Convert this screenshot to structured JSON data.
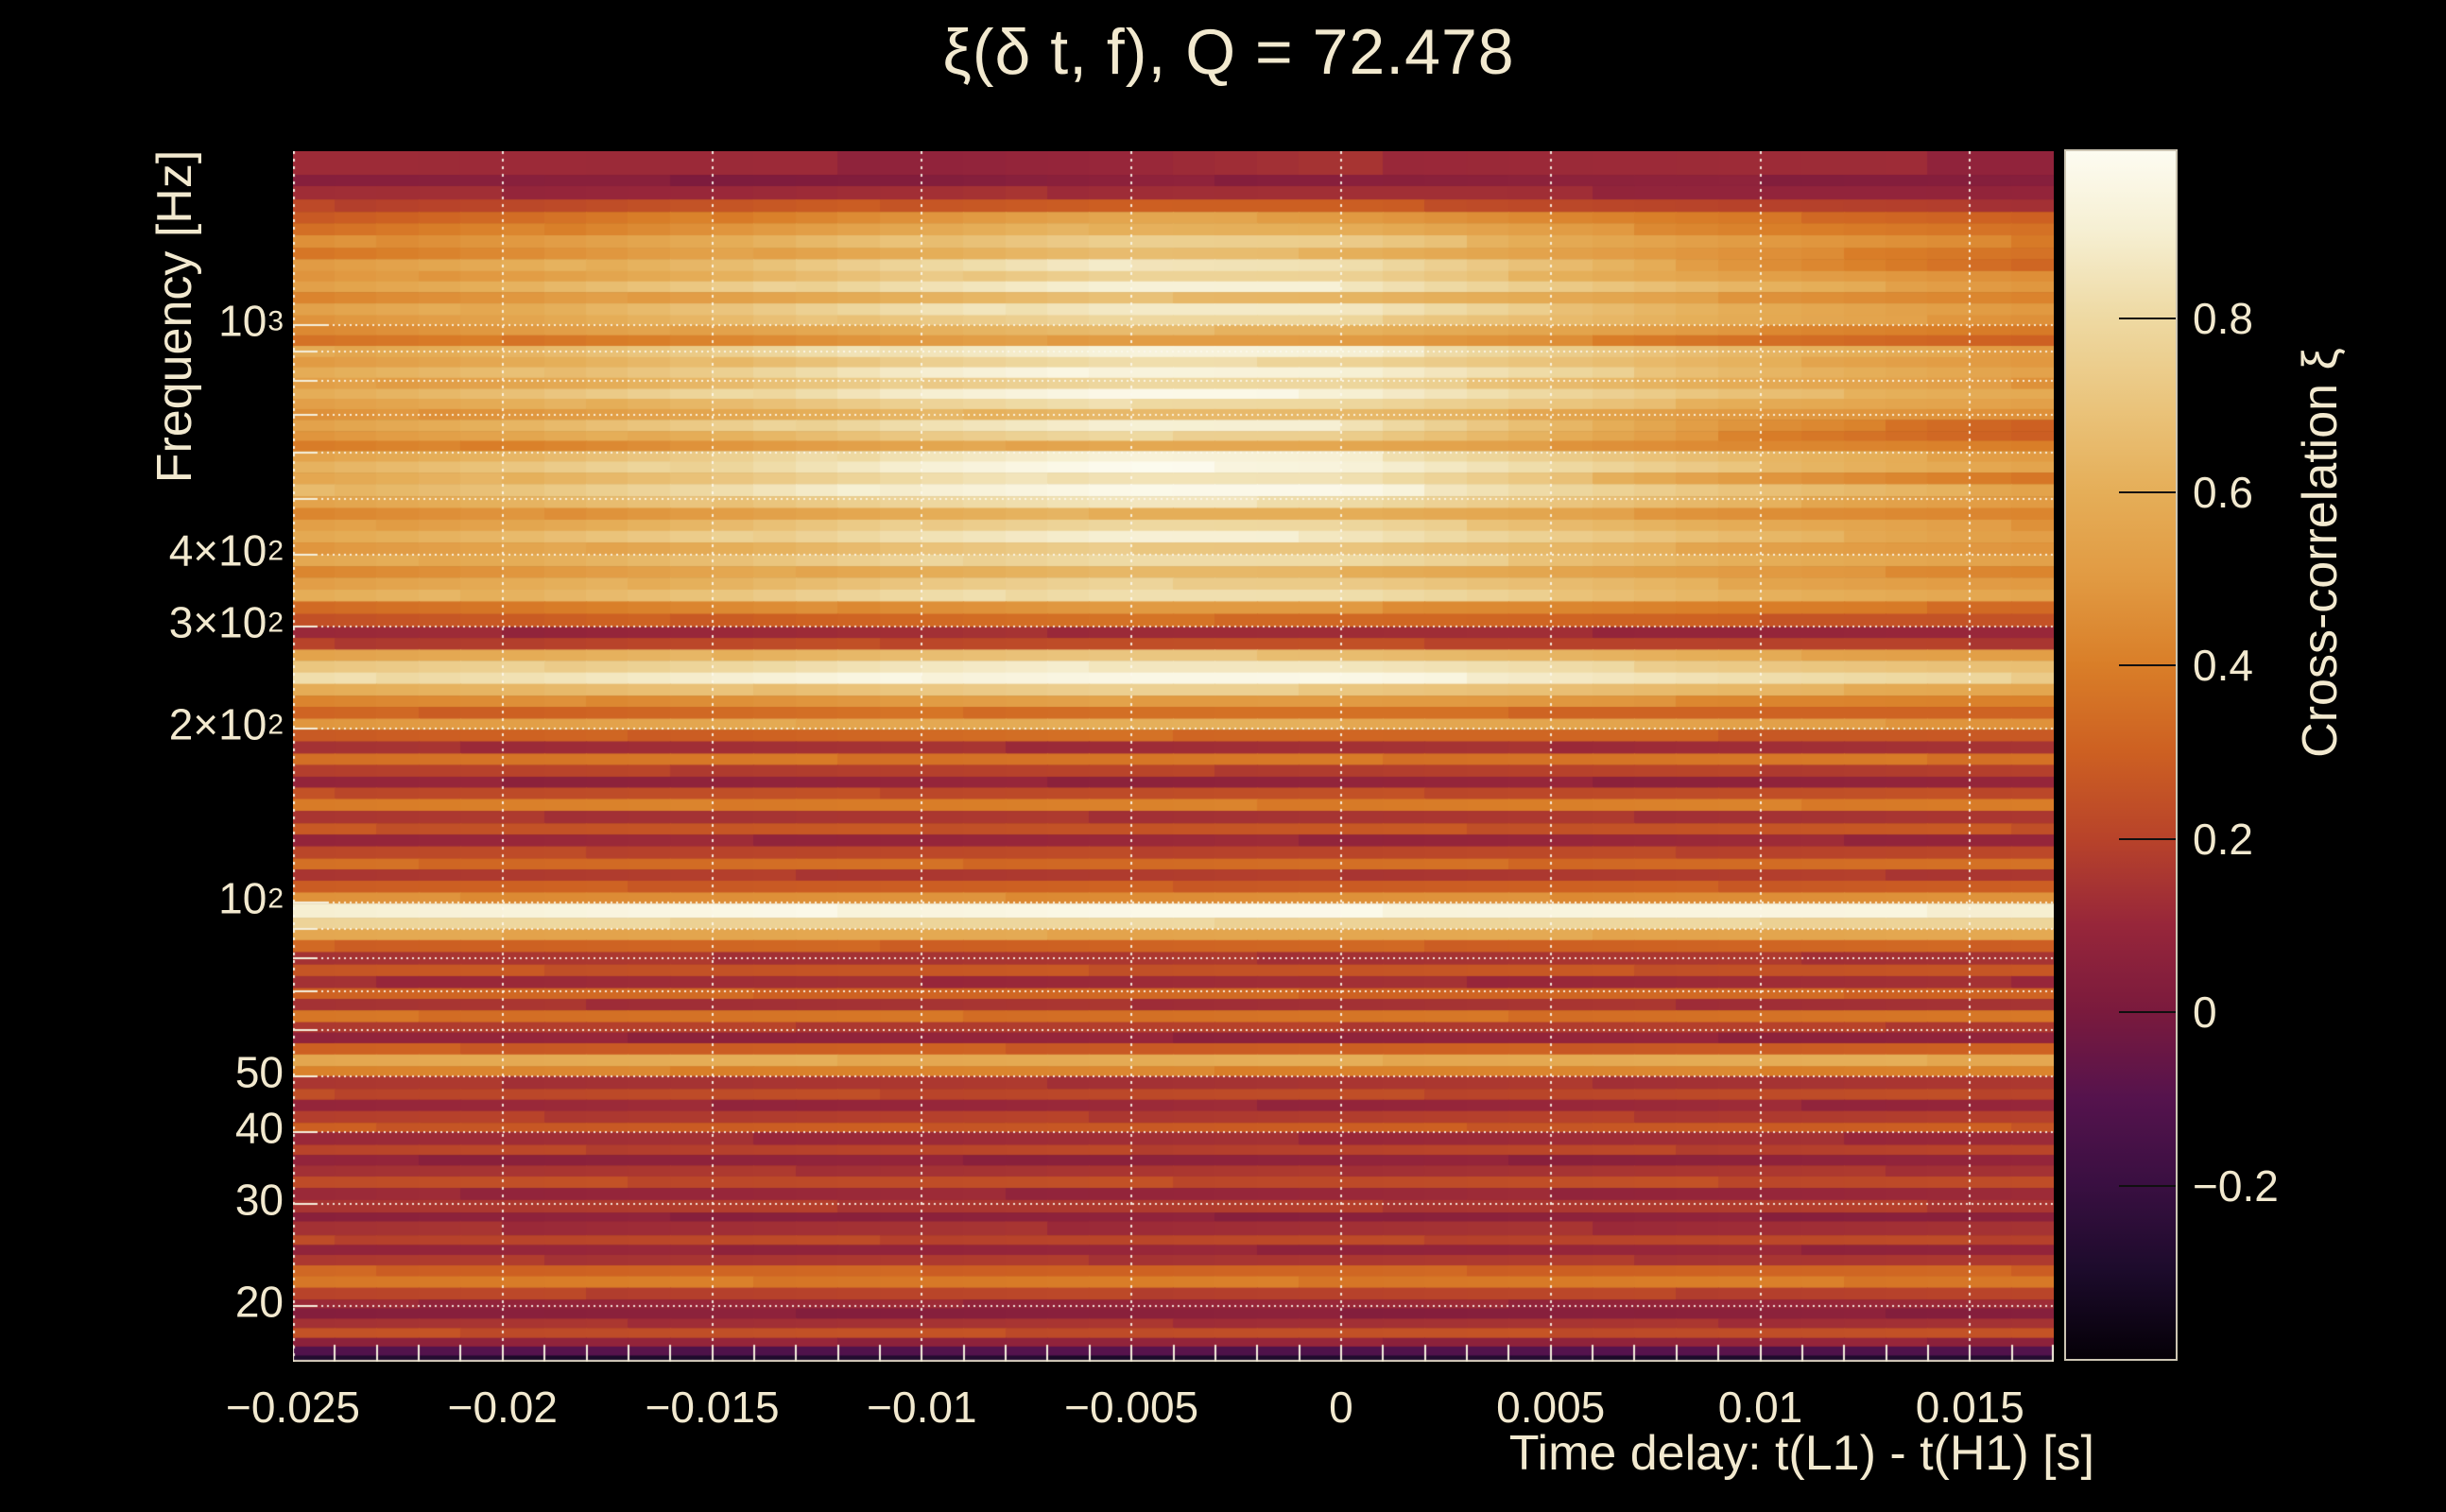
{
  "page": {
    "background": "#000000",
    "text_color": "#f2e9cf"
  },
  "chart_data": {
    "type": "heatmap",
    "title": "ξ(δ t, f), Q = 72.478",
    "xlabel": "Time delay: t(L1) - t(H1) [s]",
    "ylabel": "Frequency [Hz]",
    "colorbar_label": "Cross-correlation ξ",
    "xlim": [
      -0.025,
      0.017
    ],
    "ylim": [
      16,
      2000
    ],
    "yscale": "log",
    "zlim": [
      -0.4,
      0.993
    ],
    "grid": true,
    "xticks": [
      {
        "v": -0.025,
        "label": "−0.025"
      },
      {
        "v": -0.02,
        "label": "−0.02"
      },
      {
        "v": -0.015,
        "label": "−0.015"
      },
      {
        "v": -0.01,
        "label": "−0.01"
      },
      {
        "v": -0.005,
        "label": "−0.005"
      },
      {
        "v": 0,
        "label": "0"
      },
      {
        "v": 0.005,
        "label": "0.005"
      },
      {
        "v": 0.01,
        "label": "0.01"
      },
      {
        "v": 0.015,
        "label": "0.015"
      }
    ],
    "yticks": [
      {
        "f": 1000,
        "base": "10",
        "exp": "3"
      },
      {
        "f": 400,
        "base": "4×10",
        "exp": "2"
      },
      {
        "f": 300,
        "base": "3×10",
        "exp": "2"
      },
      {
        "f": 200,
        "base": "2×10",
        "exp": "2"
      },
      {
        "f": 100,
        "base": "10",
        "exp": "2"
      },
      {
        "f": 50,
        "base": "50",
        "exp": ""
      },
      {
        "f": 40,
        "base": "40",
        "exp": ""
      },
      {
        "f": 30,
        "base": "30",
        "exp": ""
      },
      {
        "f": 20,
        "base": "20",
        "exp": ""
      }
    ],
    "colorbar_ticks": [
      {
        "v": 0.8,
        "label": "0.8"
      },
      {
        "v": 0.6,
        "label": "0.6"
      },
      {
        "v": 0.4,
        "label": "0.4"
      },
      {
        "v": 0.2,
        "label": "0.2"
      },
      {
        "v": 0,
        "label": "0"
      },
      {
        "v": -0.2,
        "label": "−0.2"
      }
    ],
    "grid_x": [
      -0.02,
      -0.015,
      -0.01,
      -0.005,
      0,
      0.005,
      0.01,
      0.015
    ],
    "grid_f": [
      20,
      30,
      40,
      50,
      60,
      70,
      80,
      90,
      100,
      200,
      300,
      400,
      500,
      600,
      700,
      800,
      900,
      1000
    ],
    "x_anchors": [
      -0.025,
      -0.02,
      -0.015,
      -0.01,
      -0.005,
      0,
      0.005,
      0.01,
      0.017
    ],
    "colormap": [
      [
        -0.4,
        "#050007"
      ],
      [
        -0.3,
        "#1c0b2b"
      ],
      [
        -0.2,
        "#390f41"
      ],
      [
        -0.1,
        "#55134d"
      ],
      [
        0.0,
        "#7a1a3d"
      ],
      [
        0.1,
        "#97263a"
      ],
      [
        0.2,
        "#b8432a"
      ],
      [
        0.3,
        "#cd6022"
      ],
      [
        0.4,
        "#d97e28"
      ],
      [
        0.5,
        "#e19a42"
      ],
      [
        0.6,
        "#e5ae58"
      ],
      [
        0.7,
        "#eac47c"
      ],
      [
        0.8,
        "#eed9a2"
      ],
      [
        0.9,
        "#f6efd2"
      ],
      [
        0.993,
        "#fdfcf1"
      ]
    ],
    "rows": [
      [
        2000,
        1820,
        [
          0.14,
          0.12,
          0.1,
          0.09,
          0.1,
          0.13,
          0.12,
          0.11,
          0.09
        ]
      ],
      [
        1820,
        1740,
        [
          0.05,
          0.04,
          0.03,
          0.03,
          0.05,
          0.06,
          0.06,
          0.05,
          0.04
        ]
      ],
      [
        1740,
        1650,
        [
          0.12,
          0.11,
          0.11,
          0.12,
          0.14,
          0.13,
          0.11,
          0.09,
          0.07
        ]
      ],
      [
        1650,
        1570,
        [
          0.2,
          0.22,
          0.25,
          0.28,
          0.3,
          0.28,
          0.23,
          0.19,
          0.15
        ]
      ],
      [
        1570,
        1500,
        [
          0.28,
          0.33,
          0.4,
          0.48,
          0.55,
          0.52,
          0.43,
          0.36,
          0.3
        ]
      ],
      [
        1500,
        1430,
        [
          0.34,
          0.4,
          0.48,
          0.56,
          0.63,
          0.6,
          0.5,
          0.42,
          0.34
        ]
      ],
      [
        1430,
        1360,
        [
          0.44,
          0.5,
          0.58,
          0.68,
          0.76,
          0.73,
          0.6,
          0.5,
          0.4
        ]
      ],
      [
        1360,
        1300,
        [
          0.38,
          0.44,
          0.52,
          0.6,
          0.66,
          0.63,
          0.54,
          0.45,
          0.36
        ]
      ],
      [
        1300,
        1240,
        [
          0.5,
          0.57,
          0.66,
          0.78,
          0.87,
          0.84,
          0.66,
          0.48,
          0.3
        ]
      ],
      [
        1240,
        1190,
        [
          0.46,
          0.52,
          0.6,
          0.7,
          0.78,
          0.76,
          0.63,
          0.53,
          0.43
        ]
      ],
      [
        1190,
        1140,
        [
          0.54,
          0.61,
          0.71,
          0.84,
          0.91,
          0.89,
          0.74,
          0.61,
          0.49
        ]
      ],
      [
        1140,
        1090,
        [
          0.42,
          0.47,
          0.54,
          0.61,
          0.67,
          0.64,
          0.57,
          0.49,
          0.41
        ]
      ],
      [
        1090,
        1040,
        [
          0.52,
          0.59,
          0.69,
          0.81,
          0.89,
          0.87,
          0.71,
          0.59,
          0.47
        ]
      ],
      [
        1040,
        1000,
        [
          0.49,
          0.55,
          0.63,
          0.73,
          0.79,
          0.77,
          0.67,
          0.57,
          0.47
        ]
      ],
      [
        1000,
        960,
        [
          0.44,
          0.49,
          0.55,
          0.61,
          0.65,
          0.63,
          0.55,
          0.46,
          0.38
        ]
      ],
      [
        960,
        920,
        [
          0.35,
          0.38,
          0.43,
          0.49,
          0.53,
          0.51,
          0.44,
          0.36,
          0.28
        ]
      ],
      [
        920,
        880,
        [
          0.56,
          0.63,
          0.73,
          0.86,
          0.93,
          0.9,
          0.76,
          0.63,
          0.51
        ]
      ],
      [
        880,
        845,
        [
          0.51,
          0.57,
          0.65,
          0.75,
          0.81,
          0.79,
          0.69,
          0.59,
          0.49
        ]
      ],
      [
        845,
        810,
        [
          0.58,
          0.65,
          0.75,
          0.88,
          0.95,
          0.92,
          0.78,
          0.65,
          0.52
        ]
      ],
      [
        810,
        775,
        [
          0.5,
          0.56,
          0.64,
          0.74,
          0.8,
          0.78,
          0.68,
          0.58,
          0.48
        ]
      ],
      [
        775,
        745,
        [
          0.6,
          0.67,
          0.77,
          0.9,
          0.96,
          0.93,
          0.79,
          0.66,
          0.58
        ]
      ],
      [
        745,
        715,
        [
          0.52,
          0.58,
          0.66,
          0.76,
          0.82,
          0.8,
          0.7,
          0.6,
          0.52
        ]
      ],
      [
        715,
        685,
        [
          0.45,
          0.5,
          0.56,
          0.62,
          0.66,
          0.64,
          0.58,
          0.5,
          0.44
        ]
      ],
      [
        685,
        655,
        [
          0.55,
          0.62,
          0.72,
          0.84,
          0.9,
          0.88,
          0.66,
          0.45,
          0.3
        ]
      ],
      [
        655,
        630,
        [
          0.48,
          0.54,
          0.62,
          0.72,
          0.78,
          0.76,
          0.6,
          0.42,
          0.28
        ]
      ],
      [
        630,
        605,
        [
          0.38,
          0.42,
          0.48,
          0.54,
          0.58,
          0.56,
          0.5,
          0.44,
          0.38
        ]
      ],
      [
        605,
        580,
        [
          0.56,
          0.63,
          0.73,
          0.86,
          0.92,
          0.89,
          0.75,
          0.63,
          0.51
        ]
      ],
      [
        580,
        555,
        [
          0.62,
          0.69,
          0.79,
          0.91,
          0.97,
          0.94,
          0.8,
          0.67,
          0.54
        ]
      ],
      [
        555,
        530,
        [
          0.55,
          0.62,
          0.7,
          0.8,
          0.86,
          0.84,
          0.68,
          0.5,
          0.35
        ]
      ],
      [
        530,
        505,
        [
          0.63,
          0.7,
          0.8,
          0.92,
          0.97,
          0.95,
          0.81,
          0.68,
          0.55
        ]
      ],
      [
        505,
        482,
        [
          0.55,
          0.61,
          0.69,
          0.79,
          0.85,
          0.83,
          0.71,
          0.6,
          0.5
        ]
      ],
      [
        482,
        460,
        [
          0.42,
          0.46,
          0.52,
          0.58,
          0.62,
          0.6,
          0.54,
          0.47,
          0.41
        ]
      ],
      [
        460,
        440,
        [
          0.5,
          0.56,
          0.64,
          0.74,
          0.8,
          0.78,
          0.68,
          0.58,
          0.48
        ]
      ],
      [
        440,
        420,
        [
          0.58,
          0.64,
          0.73,
          0.84,
          0.9,
          0.88,
          0.75,
          0.63,
          0.52
        ]
      ],
      [
        420,
        400,
        [
          0.48,
          0.53,
          0.6,
          0.68,
          0.73,
          0.71,
          0.63,
          0.55,
          0.47
        ]
      ],
      [
        400,
        382,
        [
          0.55,
          0.6,
          0.67,
          0.76,
          0.82,
          0.8,
          0.7,
          0.6,
          0.51
        ]
      ],
      [
        382,
        365,
        [
          0.44,
          0.48,
          0.54,
          0.6,
          0.64,
          0.62,
          0.56,
          0.49,
          0.43
        ]
      ],
      [
        365,
        348,
        [
          0.52,
          0.57,
          0.63,
          0.71,
          0.76,
          0.74,
          0.66,
          0.57,
          0.49
        ]
      ],
      [
        348,
        332,
        [
          0.58,
          0.63,
          0.7,
          0.79,
          0.84,
          0.82,
          0.72,
          0.62,
          0.53
        ]
      ],
      [
        332,
        316,
        [
          0.35,
          0.38,
          0.42,
          0.47,
          0.5,
          0.48,
          0.44,
          0.39,
          0.34
        ]
      ],
      [
        316,
        300,
        [
          0.25,
          0.27,
          0.3,
          0.33,
          0.35,
          0.34,
          0.31,
          0.28,
          0.25
        ]
      ],
      [
        300,
        287,
        [
          0.1,
          0.1,
          0.11,
          0.12,
          0.13,
          0.12,
          0.11,
          0.1,
          0.09
        ]
      ],
      [
        287,
        274,
        [
          0.18,
          0.19,
          0.21,
          0.23,
          0.24,
          0.23,
          0.21,
          0.19,
          0.17
        ]
      ],
      [
        274,
        262,
        [
          0.55,
          0.58,
          0.62,
          0.67,
          0.7,
          0.68,
          0.63,
          0.57,
          0.52
        ]
      ],
      [
        262,
        250,
        [
          0.7,
          0.74,
          0.79,
          0.85,
          0.88,
          0.86,
          0.8,
          0.73,
          0.66
        ]
      ],
      [
        250,
        239,
        [
          0.8,
          0.84,
          0.89,
          0.94,
          0.96,
          0.95,
          0.89,
          0.82,
          0.75
        ]
      ],
      [
        239,
        228,
        [
          0.6,
          0.63,
          0.67,
          0.72,
          0.75,
          0.73,
          0.68,
          0.62,
          0.56
        ]
      ],
      [
        228,
        218,
        [
          0.42,
          0.44,
          0.47,
          0.5,
          0.52,
          0.51,
          0.48,
          0.44,
          0.4
        ]
      ],
      [
        218,
        208,
        [
          0.3,
          0.31,
          0.33,
          0.35,
          0.36,
          0.35,
          0.33,
          0.31,
          0.29
        ]
      ],
      [
        208,
        199,
        [
          0.5,
          0.52,
          0.55,
          0.58,
          0.6,
          0.59,
          0.56,
          0.52,
          0.48
        ]
      ],
      [
        199,
        190,
        [
          0.28,
          0.29,
          0.31,
          0.33,
          0.34,
          0.33,
          0.31,
          0.29,
          0.27
        ]
      ],
      [
        190,
        181,
        0.13
      ],
      [
        181,
        173,
        0.37
      ],
      [
        173,
        165,
        0.19
      ],
      [
        165,
        158,
        0.08
      ],
      [
        158,
        151,
        0.23
      ],
      [
        151,
        144,
        0.4
      ],
      [
        144,
        137,
        0.15
      ],
      [
        137,
        131,
        0.26
      ],
      [
        131,
        125,
        0.1
      ],
      [
        125,
        119,
        0.21
      ],
      [
        119,
        114,
        0.34
      ],
      [
        114,
        109,
        0.17
      ],
      [
        109,
        104,
        0.29
      ],
      [
        104,
        99.5,
        0.46
      ],
      [
        99.5,
        94,
        [
          0.92,
          0.93,
          0.94,
          0.95,
          0.96,
          0.95,
          0.94,
          0.93,
          0.91
        ]
      ],
      [
        94,
        90,
        0.78
      ],
      [
        90,
        86,
        0.56
      ],
      [
        86,
        82,
        0.31
      ],
      [
        82,
        78,
        0.15
      ],
      [
        78,
        74.5,
        0.26
      ],
      [
        74.5,
        71,
        0.12
      ],
      [
        71,
        68,
        0.32
      ],
      [
        68,
        65,
        0.14
      ],
      [
        65,
        62,
        0.36
      ],
      [
        62,
        59.5,
        0.18
      ],
      [
        59.5,
        57,
        0.08
      ],
      [
        57,
        54.5,
        0.29
      ],
      [
        54.5,
        52,
        0.58
      ],
      [
        52,
        50,
        0.42
      ],
      [
        50,
        47.5,
        0.15
      ],
      [
        47.5,
        45.5,
        0.22
      ],
      [
        45.5,
        43.5,
        0.1
      ],
      [
        43.5,
        41.5,
        0.18
      ],
      [
        41.5,
        40,
        0.28
      ],
      [
        40,
        38,
        0.12
      ],
      [
        38,
        36.5,
        0.2
      ],
      [
        36.5,
        35,
        0.07
      ],
      [
        35,
        33.5,
        0.15
      ],
      [
        33.5,
        32,
        0.23
      ],
      [
        32,
        30.5,
        0.1
      ],
      [
        30.5,
        29,
        0.17
      ],
      [
        29,
        28,
        0.06
      ],
      [
        28,
        26.5,
        0.13
      ],
      [
        26.5,
        25.5,
        0.21
      ],
      [
        25.5,
        24.5,
        0.09
      ],
      [
        24.5,
        23.5,
        0.16
      ],
      [
        23.5,
        22.5,
        0.31
      ],
      [
        22.5,
        21.5,
        0.39
      ],
      [
        21.5,
        20.5,
        0.2
      ],
      [
        20.5,
        19.8,
        0.1
      ],
      [
        19.8,
        19,
        0.05
      ],
      [
        19,
        18.3,
        0.14
      ],
      [
        18.3,
        17.6,
        0.24
      ],
      [
        17.6,
        17,
        0.08
      ],
      [
        17,
        16.4,
        -0.11
      ],
      [
        16.4,
        16,
        -0.29
      ]
    ]
  }
}
